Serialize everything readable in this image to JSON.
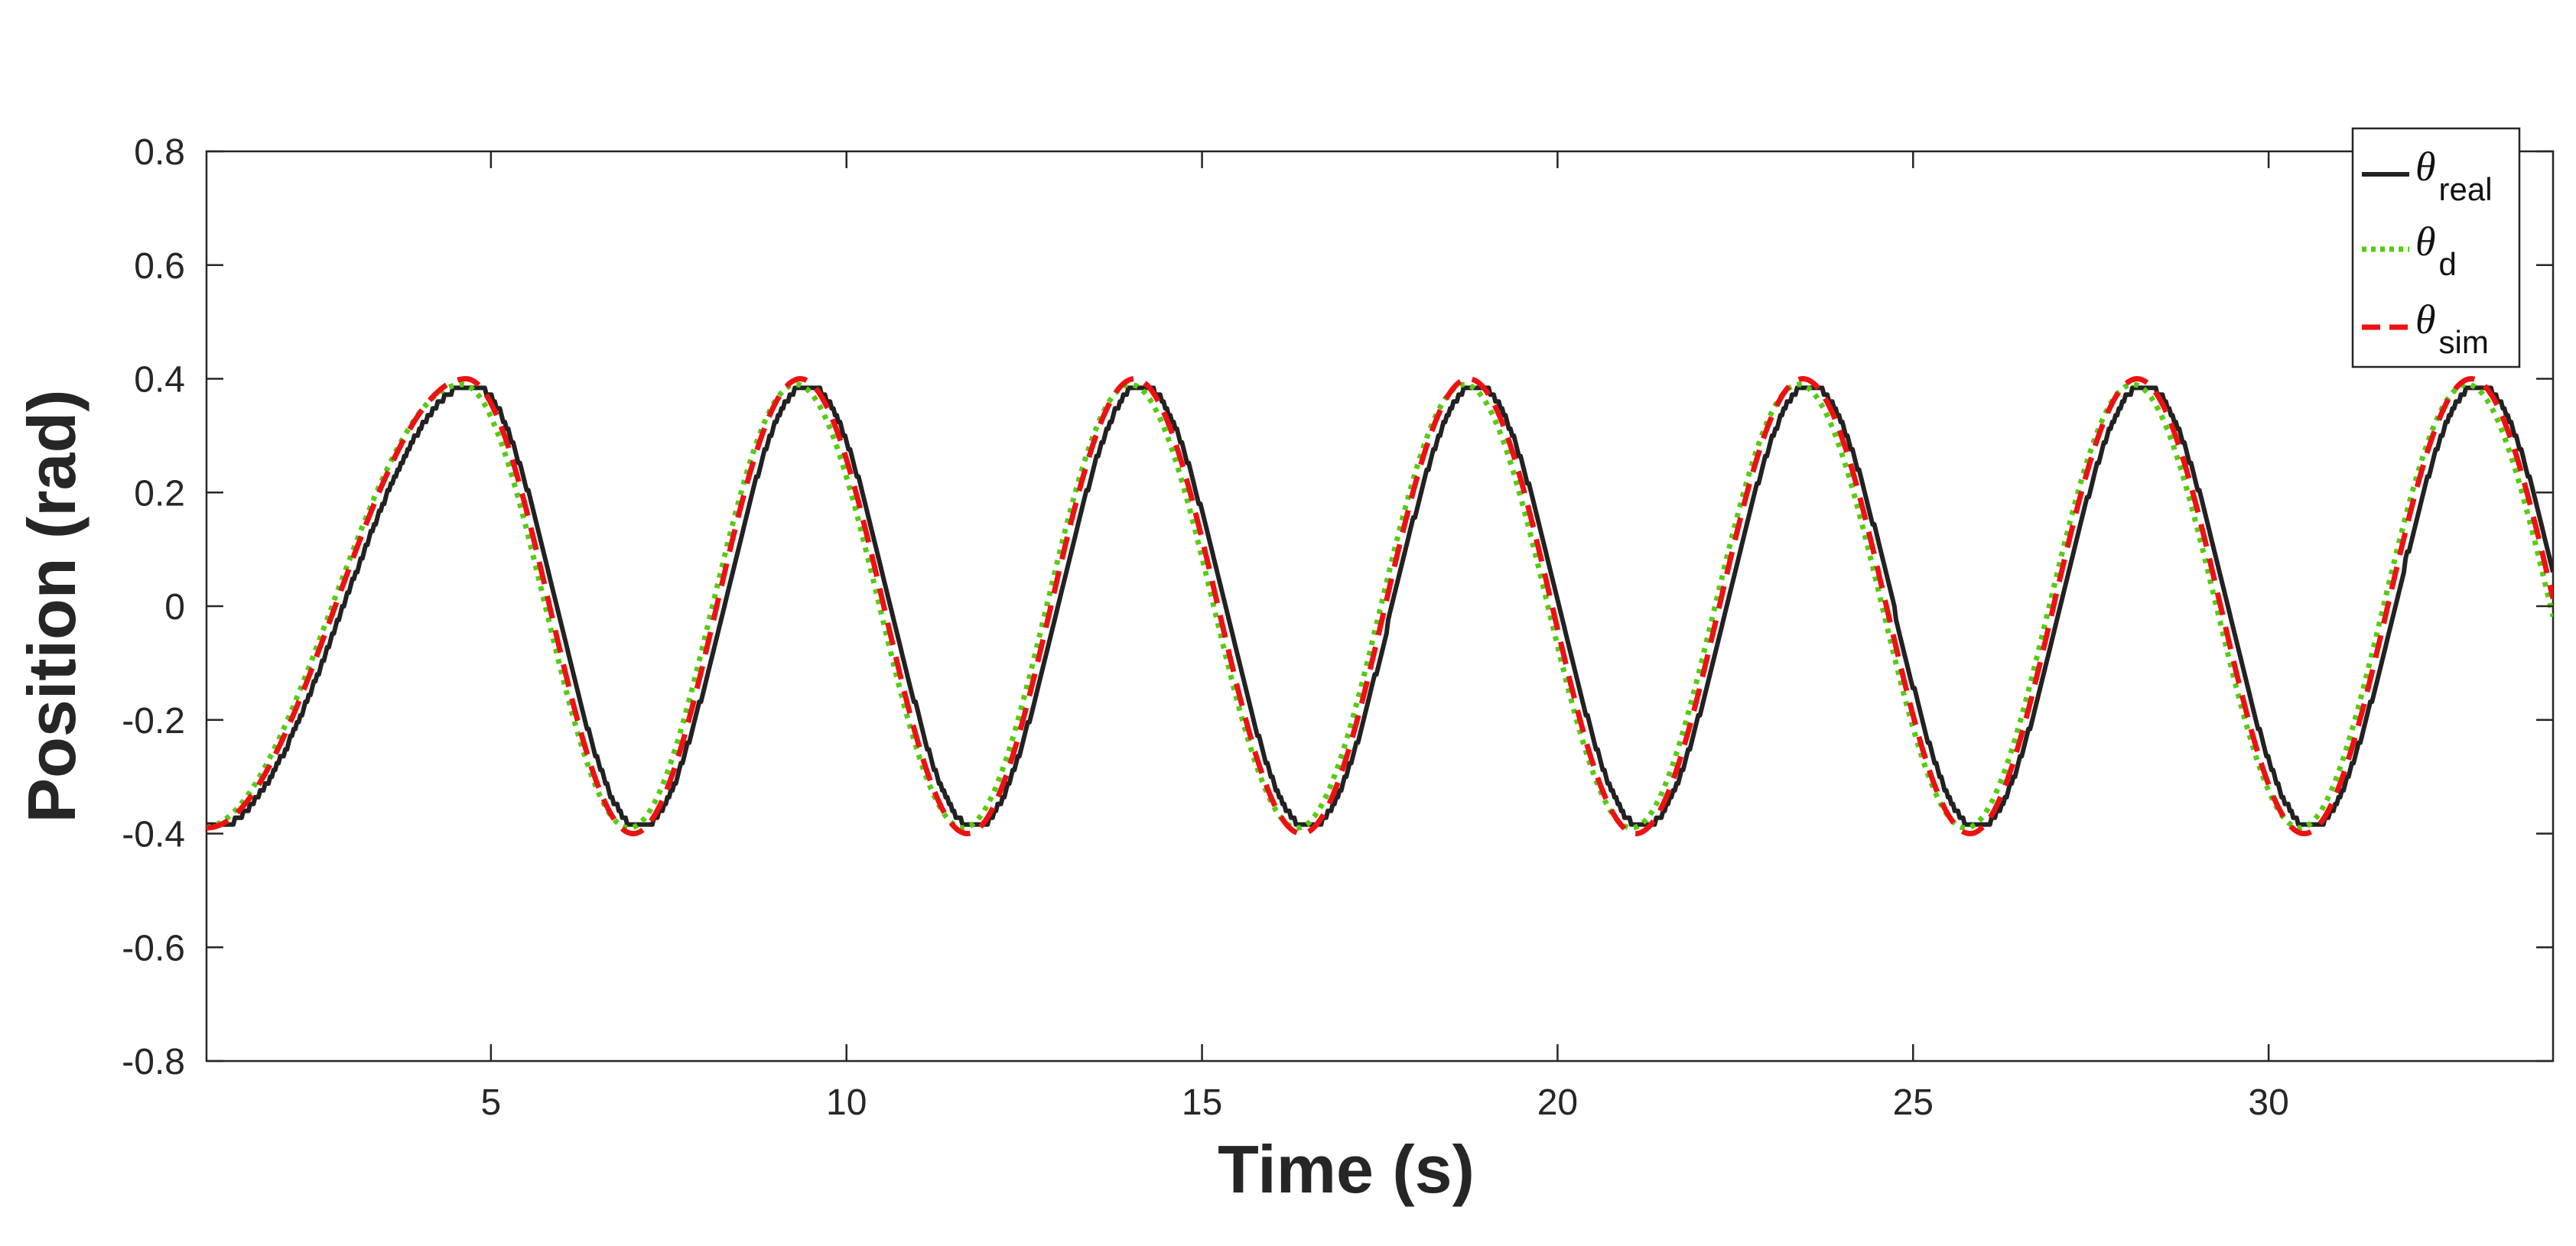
{
  "chart_data": {
    "type": "line",
    "title": "",
    "xlabel": "Time (s)",
    "ylabel": "Position (rad)",
    "xlim": [
      1,
      34
    ],
    "ylim": [
      -0.8,
      0.8
    ],
    "xticks": [
      5,
      10,
      15,
      20,
      25,
      30
    ],
    "xtick_labels": [
      "5",
      "10",
      "15",
      "20",
      "25",
      "30"
    ],
    "yticks": [
      0.8,
      0.6,
      0.4,
      0.2,
      0,
      -0.2,
      -0.4,
      -0.6,
      -0.8
    ],
    "ytick_labels": [
      "0.8",
      "0.6",
      "0.4",
      "0.2",
      "0",
      "-0.2",
      "-0.4",
      "-0.6",
      "-0.8"
    ],
    "grid": false,
    "legend_position": "top-right",
    "signal": {
      "amplitude": 0.4,
      "period_s": 4.7,
      "first_peak_s": 4.65,
      "start_s": 1.0,
      "start_value": -0.39
    },
    "series": [
      {
        "name": "θ_real",
        "symbol": "θ",
        "subscript": "real",
        "color": "#222222",
        "style": "solid",
        "time_lag_s": 0.1,
        "amplitude": 0.39
      },
      {
        "name": "θ_d",
        "symbol": "θ",
        "subscript": "d",
        "color": "#55cc11",
        "style": "dotted",
        "time_lag_s": -0.06,
        "amplitude": 0.39
      },
      {
        "name": "θ_sim",
        "symbol": "θ",
        "subscript": "sim",
        "color": "#ee1111",
        "style": "dashed",
        "time_lag_s": 0.0,
        "amplitude": 0.4
      }
    ]
  }
}
